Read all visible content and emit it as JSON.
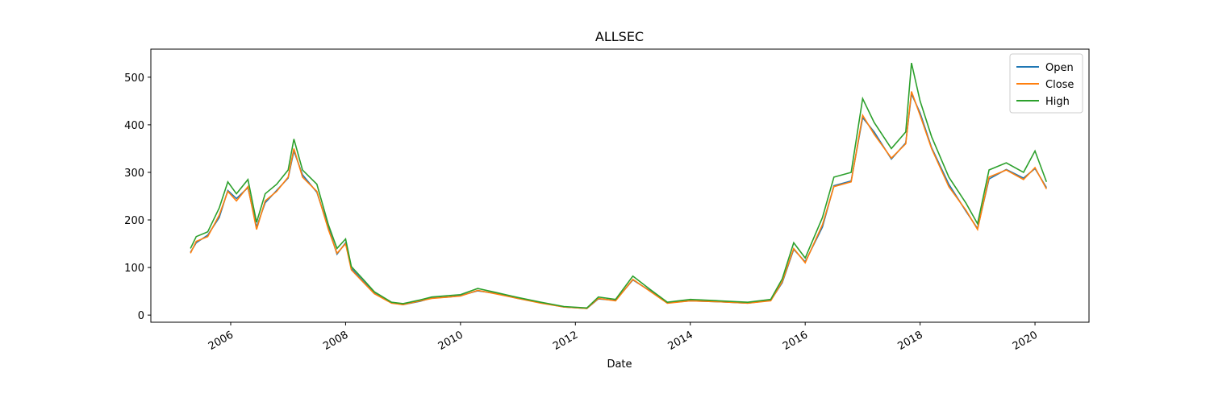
{
  "chart_data": {
    "type": "line",
    "title": "ALLSEC",
    "xlabel": "Date",
    "x": [
      2005.3,
      2005.4,
      2005.6,
      2005.8,
      2005.95,
      2006.1,
      2006.3,
      2006.45,
      2006.6,
      2006.8,
      2007.0,
      2007.1,
      2007.25,
      2007.5,
      2007.7,
      2007.85,
      2008.0,
      2008.1,
      2008.3,
      2008.5,
      2008.8,
      2009.0,
      2009.3,
      2009.5,
      2009.8,
      2010.0,
      2010.3,
      2010.6,
      2011.0,
      2011.4,
      2011.8,
      2012.2,
      2012.4,
      2012.7,
      2013.0,
      2013.3,
      2013.6,
      2014.0,
      2014.5,
      2015.0,
      2015.4,
      2015.6,
      2015.8,
      2016.0,
      2016.3,
      2016.5,
      2016.8,
      2017.0,
      2017.2,
      2017.5,
      2017.75,
      2017.85,
      2018.0,
      2018.2,
      2018.5,
      2018.8,
      2019.0,
      2019.2,
      2019.5,
      2019.8,
      2020.0,
      2020.2
    ],
    "series": [
      {
        "name": "Open",
        "color": "#1f77b4",
        "values": [
          132,
          152,
          168,
          205,
          262,
          245,
          268,
          185,
          236,
          262,
          288,
          345,
          295,
          258,
          185,
          128,
          152,
          98,
          72,
          46,
          26,
          22,
          29,
          36,
          38,
          41,
          51,
          46,
          35,
          26,
          17,
          14,
          34,
          31,
          74,
          51,
          26,
          30,
          28,
          25,
          31,
          68,
          138,
          112,
          185,
          272,
          282,
          415,
          385,
          328,
          362,
          465,
          425,
          352,
          275,
          218,
          182,
          286,
          306,
          288,
          308,
          268
        ]
      },
      {
        "name": "Close",
        "color": "#ff7f0e",
        "values": [
          130,
          155,
          165,
          210,
          260,
          240,
          270,
          180,
          240,
          260,
          290,
          350,
          290,
          260,
          180,
          130,
          150,
          95,
          70,
          45,
          25,
          22,
          30,
          35,
          38,
          40,
          52,
          45,
          35,
          25,
          17,
          14,
          35,
          30,
          75,
          50,
          25,
          30,
          28,
          25,
          30,
          70,
          140,
          110,
          190,
          270,
          280,
          420,
          380,
          330,
          360,
          470,
          420,
          350,
          270,
          220,
          180,
          290,
          305,
          285,
          310,
          265
        ]
      },
      {
        "name": "High",
        "color": "#2ca02c",
        "values": [
          140,
          165,
          175,
          225,
          280,
          255,
          285,
          195,
          255,
          275,
          305,
          370,
          305,
          275,
          190,
          140,
          160,
          102,
          76,
          49,
          27,
          24,
          32,
          38,
          41,
          43,
          56,
          48,
          37,
          27,
          18,
          15,
          38,
          33,
          82,
          54,
          27,
          33,
          30,
          27,
          33,
          76,
          152,
          120,
          205,
          290,
          300,
          455,
          405,
          350,
          385,
          530,
          450,
          375,
          290,
          235,
          192,
          305,
          320,
          300,
          345,
          280
        ]
      }
    ],
    "xlim": [
      2004.61,
      2020.94
    ],
    "xticks": [
      2006,
      2008,
      2010,
      2012,
      2014,
      2016,
      2018,
      2020
    ],
    "ylim": [
      -15,
      559
    ],
    "yticks": [
      0,
      100,
      200,
      300,
      400,
      500
    ],
    "legend": "upper right"
  }
}
